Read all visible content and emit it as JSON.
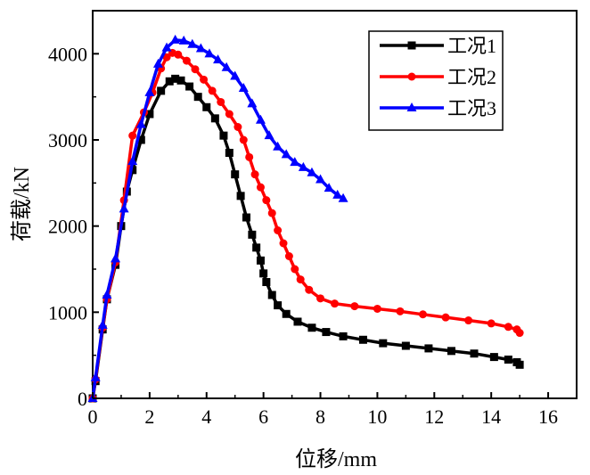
{
  "chart_data": {
    "type": "line",
    "title": "",
    "xlabel": "位移/mm",
    "ylabel": "荷载/kN",
    "xlim": [
      0,
      17
    ],
    "ylim": [
      0,
      4500
    ],
    "xticks": [
      0,
      2,
      4,
      6,
      8,
      10,
      12,
      14,
      16
    ],
    "xtick_labels": [
      "0",
      "2",
      "4",
      "6",
      "8",
      "10",
      "12",
      "14",
      "16"
    ],
    "yticks": [
      0,
      1000,
      2000,
      3000,
      4000
    ],
    "ytick_labels": [
      "0",
      "1000",
      "2000",
      "3000",
      "4000"
    ],
    "grid": false,
    "legend_position": "top-right",
    "series": [
      {
        "name": "工况1",
        "color": "#000000",
        "marker": "square",
        "points": [
          [
            0,
            0
          ],
          [
            0.1,
            200
          ],
          [
            0.35,
            800
          ],
          [
            0.5,
            1150
          ],
          [
            0.8,
            1550
          ],
          [
            1.0,
            2000
          ],
          [
            1.2,
            2400
          ],
          [
            1.4,
            2650
          ],
          [
            1.7,
            3000
          ],
          [
            2.0,
            3300
          ],
          [
            2.4,
            3570
          ],
          [
            2.7,
            3680
          ],
          [
            2.9,
            3710
          ],
          [
            3.1,
            3690
          ],
          [
            3.4,
            3620
          ],
          [
            3.7,
            3500
          ],
          [
            4.0,
            3380
          ],
          [
            4.3,
            3250
          ],
          [
            4.6,
            3050
          ],
          [
            4.8,
            2850
          ],
          [
            5.0,
            2600
          ],
          [
            5.2,
            2350
          ],
          [
            5.4,
            2100
          ],
          [
            5.6,
            1900
          ],
          [
            5.75,
            1750
          ],
          [
            5.9,
            1600
          ],
          [
            6.0,
            1450
          ],
          [
            6.1,
            1350
          ],
          [
            6.3,
            1200
          ],
          [
            6.5,
            1080
          ],
          [
            6.8,
            980
          ],
          [
            7.2,
            890
          ],
          [
            7.7,
            820
          ],
          [
            8.2,
            770
          ],
          [
            8.8,
            720
          ],
          [
            9.5,
            680
          ],
          [
            10.2,
            640
          ],
          [
            11.0,
            610
          ],
          [
            11.8,
            580
          ],
          [
            12.6,
            550
          ],
          [
            13.4,
            520
          ],
          [
            14.1,
            480
          ],
          [
            14.6,
            450
          ],
          [
            14.9,
            420
          ],
          [
            15.0,
            390
          ]
        ]
      },
      {
        "name": "工况2",
        "color": "#ff0000",
        "marker": "circle",
        "points": [
          [
            0,
            0
          ],
          [
            0.1,
            220
          ],
          [
            0.35,
            820
          ],
          [
            0.5,
            1150
          ],
          [
            0.8,
            1580
          ],
          [
            1.1,
            2300
          ],
          [
            1.4,
            3050
          ],
          [
            1.8,
            3320
          ],
          [
            2.1,
            3550
          ],
          [
            2.4,
            3830
          ],
          [
            2.6,
            3960
          ],
          [
            2.8,
            4010
          ],
          [
            3.0,
            3990
          ],
          [
            3.3,
            3920
          ],
          [
            3.6,
            3820
          ],
          [
            3.9,
            3700
          ],
          [
            4.2,
            3570
          ],
          [
            4.5,
            3440
          ],
          [
            4.8,
            3300
          ],
          [
            5.1,
            3150
          ],
          [
            5.3,
            3000
          ],
          [
            5.5,
            2800
          ],
          [
            5.7,
            2600
          ],
          [
            5.9,
            2450
          ],
          [
            6.1,
            2300
          ],
          [
            6.3,
            2150
          ],
          [
            6.5,
            1950
          ],
          [
            6.7,
            1800
          ],
          [
            6.9,
            1650
          ],
          [
            7.1,
            1500
          ],
          [
            7.3,
            1380
          ],
          [
            7.6,
            1260
          ],
          [
            8.0,
            1160
          ],
          [
            8.5,
            1100
          ],
          [
            9.2,
            1070
          ],
          [
            10.0,
            1040
          ],
          [
            10.8,
            1010
          ],
          [
            11.6,
            975
          ],
          [
            12.4,
            940
          ],
          [
            13.2,
            905
          ],
          [
            14.0,
            870
          ],
          [
            14.6,
            830
          ],
          [
            14.9,
            800
          ],
          [
            15.0,
            760
          ]
        ]
      },
      {
        "name": "工况3",
        "color": "#0000ff",
        "marker": "triangle",
        "points": [
          [
            0,
            0
          ],
          [
            0.1,
            240
          ],
          [
            0.35,
            850
          ],
          [
            0.5,
            1200
          ],
          [
            0.8,
            1620
          ],
          [
            1.1,
            2200
          ],
          [
            1.4,
            2750
          ],
          [
            1.7,
            3180
          ],
          [
            2.0,
            3550
          ],
          [
            2.3,
            3880
          ],
          [
            2.6,
            4070
          ],
          [
            2.9,
            4160
          ],
          [
            3.2,
            4150
          ],
          [
            3.5,
            4110
          ],
          [
            3.8,
            4060
          ],
          [
            4.1,
            4000
          ],
          [
            4.4,
            3930
          ],
          [
            4.7,
            3840
          ],
          [
            5.0,
            3740
          ],
          [
            5.3,
            3600
          ],
          [
            5.6,
            3420
          ],
          [
            5.9,
            3230
          ],
          [
            6.2,
            3050
          ],
          [
            6.5,
            2920
          ],
          [
            6.8,
            2830
          ],
          [
            7.1,
            2740
          ],
          [
            7.4,
            2680
          ],
          [
            7.7,
            2620
          ],
          [
            8.0,
            2540
          ],
          [
            8.3,
            2440
          ],
          [
            8.6,
            2360
          ],
          [
            8.8,
            2320
          ]
        ]
      }
    ]
  }
}
